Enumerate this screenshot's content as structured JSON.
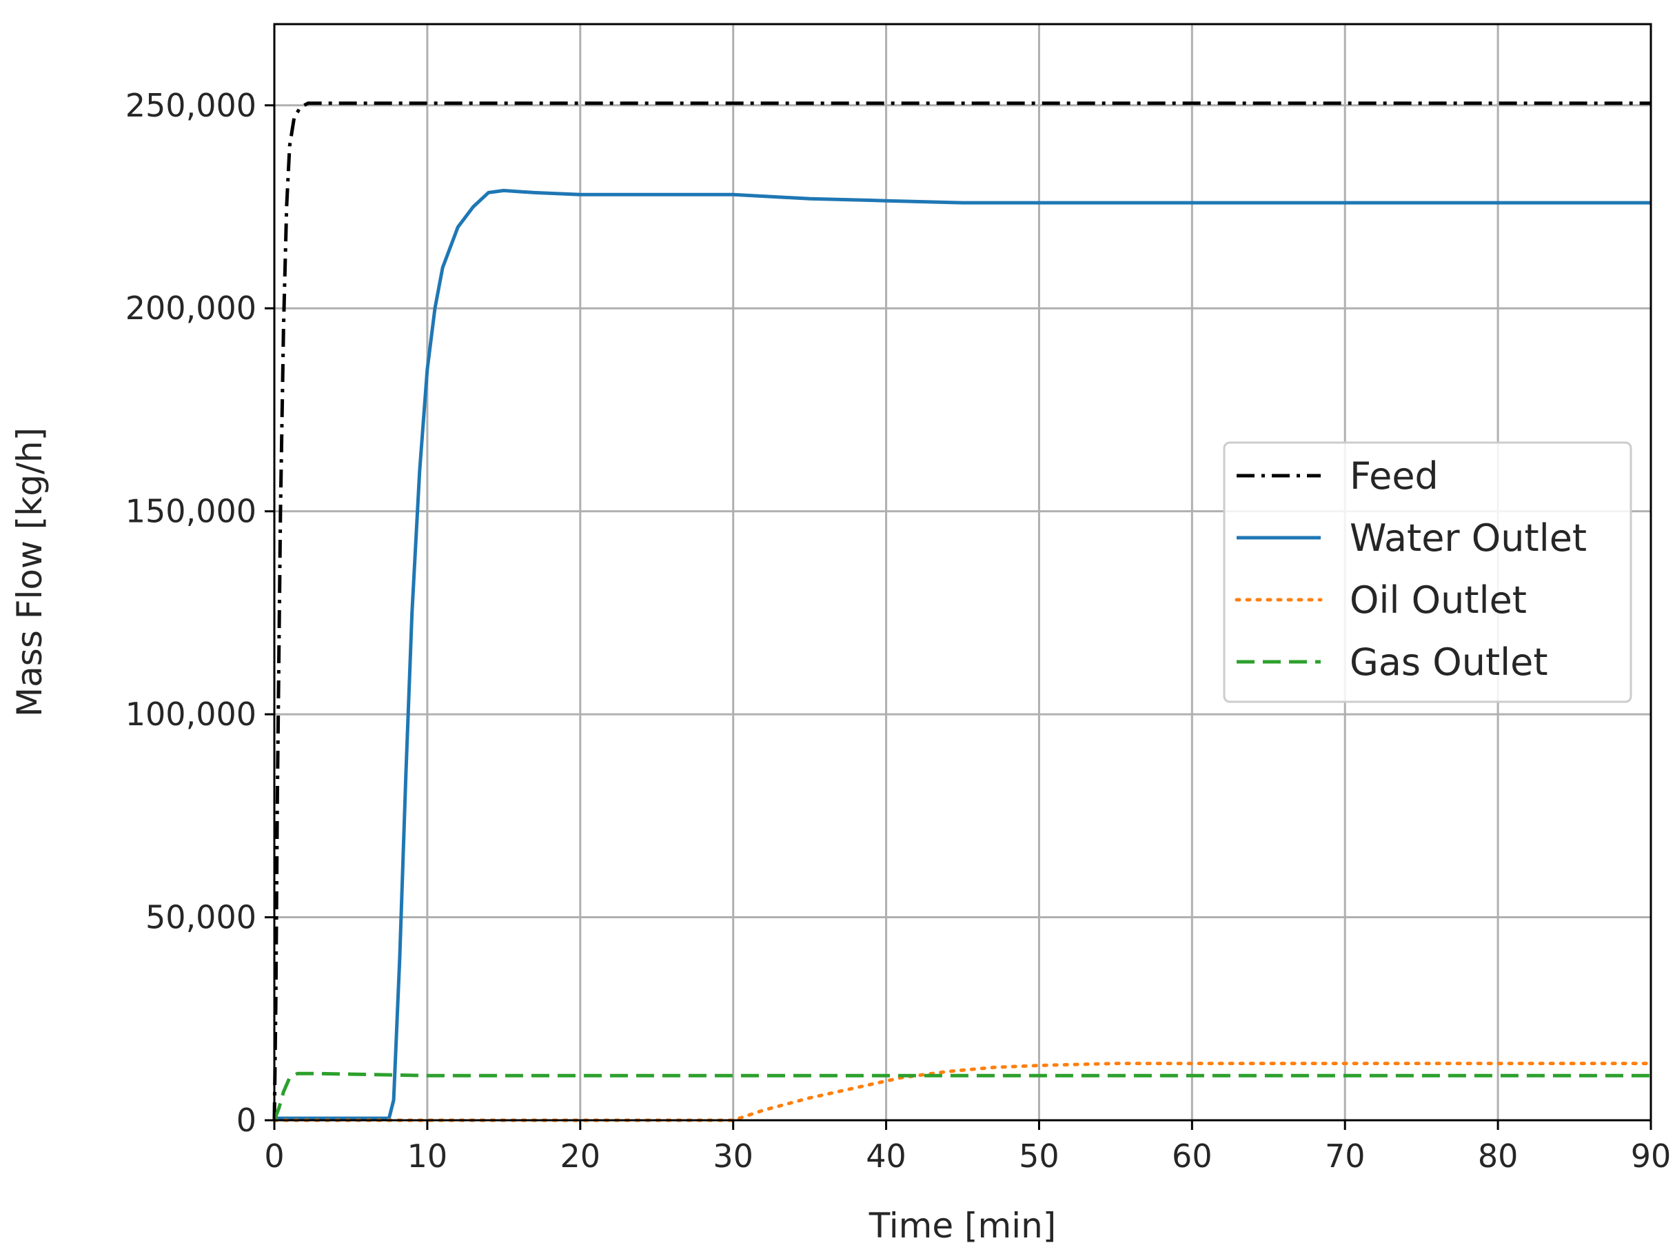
{
  "chart_data": {
    "type": "line",
    "title": "",
    "xlabel": "Time [min]",
    "ylabel": "Mass Flow [kg/h]",
    "xlim": [
      0,
      90
    ],
    "ylim": [
      0,
      270000
    ],
    "x_ticks": [
      0,
      10,
      20,
      30,
      40,
      50,
      60,
      70,
      80,
      90
    ],
    "x_tick_labels": [
      "0",
      "10",
      "20",
      "30",
      "40",
      "50",
      "60",
      "70",
      "80",
      "90"
    ],
    "y_ticks": [
      0,
      50000,
      100000,
      150000,
      200000,
      250000
    ],
    "y_tick_labels": [
      "0",
      "50,000",
      "100,000",
      "150,000",
      "200,000",
      "250,000"
    ],
    "grid": true,
    "legend_position": "center-right",
    "series": [
      {
        "name": "Feed",
        "color": "#000000",
        "dash": "dashdot",
        "points": [
          [
            0,
            0
          ],
          [
            0.1,
            30000
          ],
          [
            0.2,
            80000
          ],
          [
            0.4,
            150000
          ],
          [
            0.6,
            195000
          ],
          [
            0.8,
            225000
          ],
          [
            1.0,
            240000
          ],
          [
            1.3,
            247000
          ],
          [
            1.7,
            249500
          ],
          [
            2.2,
            250500
          ],
          [
            3,
            250500
          ],
          [
            10,
            250500
          ],
          [
            20,
            250500
          ],
          [
            30,
            250500
          ],
          [
            40,
            250500
          ],
          [
            50,
            250500
          ],
          [
            60,
            250500
          ],
          [
            70,
            250500
          ],
          [
            80,
            250500
          ],
          [
            90,
            250500
          ]
        ]
      },
      {
        "name": "Water Outlet",
        "color": "#1f77b4",
        "dash": "solid",
        "points": [
          [
            0,
            500
          ],
          [
            7.5,
            500
          ],
          [
            7.8,
            5000
          ],
          [
            8.2,
            40000
          ],
          [
            8.6,
            85000
          ],
          [
            9,
            125000
          ],
          [
            9.5,
            160000
          ],
          [
            10,
            185000
          ],
          [
            10.5,
            200000
          ],
          [
            11,
            210000
          ],
          [
            12,
            220000
          ],
          [
            13,
            225000
          ],
          [
            14,
            228500
          ],
          [
            15,
            229000
          ],
          [
            17,
            228500
          ],
          [
            20,
            228000
          ],
          [
            25,
            228000
          ],
          [
            30,
            228000
          ],
          [
            35,
            227000
          ],
          [
            40,
            226500
          ],
          [
            45,
            226000
          ],
          [
            50,
            226000
          ],
          [
            60,
            226000
          ],
          [
            70,
            226000
          ],
          [
            80,
            226000
          ],
          [
            90,
            226000
          ]
        ]
      },
      {
        "name": "Oil Outlet",
        "color": "#ff7f0e",
        "dash": "dotted",
        "points": [
          [
            0,
            0
          ],
          [
            10,
            0
          ],
          [
            20,
            0
          ],
          [
            30,
            0
          ],
          [
            32,
            2500
          ],
          [
            35,
            5500
          ],
          [
            38,
            8000
          ],
          [
            41,
            10500
          ],
          [
            44,
            12000
          ],
          [
            47,
            13000
          ],
          [
            50,
            13500
          ],
          [
            55,
            14000
          ],
          [
            60,
            14000
          ],
          [
            70,
            14000
          ],
          [
            80,
            14000
          ],
          [
            90,
            14000
          ]
        ]
      },
      {
        "name": "Gas Outlet",
        "color": "#2ca02c",
        "dash": "dashed",
        "points": [
          [
            0,
            0
          ],
          [
            0.3,
            3000
          ],
          [
            0.6,
            7000
          ],
          [
            1.0,
            10500
          ],
          [
            1.5,
            11500
          ],
          [
            3,
            11500
          ],
          [
            10,
            11000
          ],
          [
            20,
            11000
          ],
          [
            30,
            11000
          ],
          [
            40,
            11000
          ],
          [
            50,
            11000
          ],
          [
            60,
            11000
          ],
          [
            70,
            11000
          ],
          [
            80,
            11000
          ],
          [
            90,
            11000
          ]
        ]
      }
    ]
  }
}
